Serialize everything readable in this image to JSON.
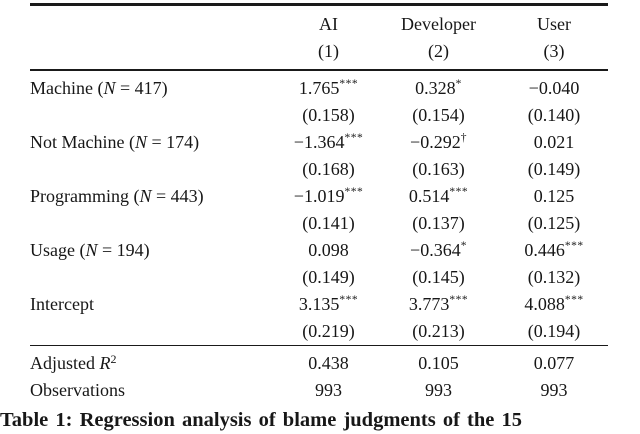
{
  "header": {
    "columns": [
      {
        "label": "AI",
        "number": "(1)"
      },
      {
        "label": "Developer",
        "number": "(2)"
      },
      {
        "label": "User",
        "number": "(3)"
      }
    ]
  },
  "rows": [
    {
      "label_pre": "Machine (",
      "label_var": "N",
      "label_post": " = 417)",
      "c1": "1.765",
      "m1": "***",
      "c2": "0.328",
      "m2": "*",
      "c3": "−0.040",
      "m3": "",
      "se1": "(0.158)",
      "se2": "(0.154)",
      "se3": "(0.140)"
    },
    {
      "label_pre": "Not Machine (",
      "label_var": "N",
      "label_post": " = 174)",
      "c1": "−1.364",
      "m1": "***",
      "c2": "−0.292",
      "m2": "†",
      "c3": "0.021",
      "m3": "",
      "se1": "(0.168)",
      "se2": "(0.163)",
      "se3": "(0.149)"
    },
    {
      "label_pre": "Programming (",
      "label_var": "N",
      "label_post": " = 443)",
      "c1": "−1.019",
      "m1": "***",
      "c2": "0.514",
      "m2": "***",
      "c3": "0.125",
      "m3": "",
      "se1": "(0.141)",
      "se2": "(0.137)",
      "se3": "(0.125)"
    },
    {
      "label_pre": "Usage (",
      "label_var": "N",
      "label_post": " = 194)",
      "c1": "0.098",
      "m1": "",
      "c2": "−0.364",
      "m2": "*",
      "c3": "0.446",
      "m3": "***",
      "se1": "(0.149)",
      "se2": "(0.145)",
      "se3": "(0.132)"
    },
    {
      "label_pre": "Intercept",
      "label_var": "",
      "label_post": "",
      "c1": "3.135",
      "m1": "***",
      "c2": "3.773",
      "m2": "***",
      "c3": "4.088",
      "m3": "***",
      "se1": "(0.219)",
      "se2": "(0.213)",
      "se3": "(0.194)"
    }
  ],
  "stats": [
    {
      "label_pre": "Adjusted ",
      "label_var": "R",
      "label_sup": "2",
      "v1": "0.438",
      "v2": "0.105",
      "v3": "0.077"
    },
    {
      "label_pre": "Observations",
      "label_var": "",
      "label_sup": "",
      "v1": "993",
      "v2": "993",
      "v3": "993"
    }
  ],
  "caption": "Table 1: Regression analysis of blame judgments of the 15"
}
